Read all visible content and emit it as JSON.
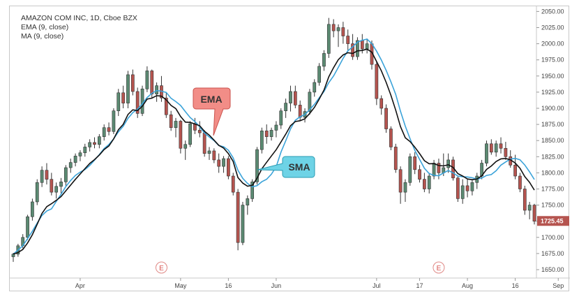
{
  "chart_data": {
    "type": "candlestick",
    "title": "AMAZON COM INC, 1D, Cboe BZX",
    "indicators": [
      "EMA (9, close)",
      "MA (9, close)"
    ],
    "y_ticks": [
      2050,
      2025,
      2000,
      1975,
      1950,
      1925,
      1900,
      1875,
      1850,
      1825,
      1800,
      1775,
      1750,
      1725,
      1700,
      1675,
      1650
    ],
    "ylim": [
      1637,
      2058
    ],
    "x_labels": [
      {
        "label": "Apr",
        "i": 14
      },
      {
        "label": "May",
        "i": 35
      },
      {
        "label": "16",
        "i": 45
      },
      {
        "label": "Jun",
        "i": 55
      },
      {
        "label": "Jul",
        "i": 76
      },
      {
        "label": "17",
        "i": 85
      },
      {
        "label": "Aug",
        "i": 95
      },
      {
        "label": "16",
        "i": 105
      },
      {
        "label": "Sep",
        "i": 114
      }
    ],
    "last_price": "1725.45",
    "up_color": "#5b8a72",
    "down_color": "#b5544f",
    "ema_color": "#3ba3d9",
    "ma_color": "#111111",
    "annotations": {
      "ema": "EMA",
      "sma": "SMA",
      "earnings_marker": "E"
    },
    "earnings_i": [
      31,
      89
    ],
    "candles": [
      [
        1670,
        1676,
        1662,
        1674
      ],
      [
        1674,
        1690,
        1670,
        1687
      ],
      [
        1687,
        1705,
        1683,
        1700
      ],
      [
        1700,
        1735,
        1696,
        1732
      ],
      [
        1732,
        1760,
        1726,
        1755
      ],
      [
        1755,
        1790,
        1750,
        1785
      ],
      [
        1785,
        1810,
        1778,
        1804
      ],
      [
        1804,
        1815,
        1782,
        1790
      ],
      [
        1790,
        1800,
        1765,
        1770
      ],
      [
        1770,
        1785,
        1760,
        1779
      ],
      [
        1779,
        1792,
        1768,
        1786
      ],
      [
        1786,
        1812,
        1780,
        1808
      ],
      [
        1808,
        1822,
        1800,
        1816
      ],
      [
        1816,
        1830,
        1810,
        1826
      ],
      [
        1826,
        1835,
        1818,
        1831
      ],
      [
        1831,
        1845,
        1825,
        1840
      ],
      [
        1840,
        1852,
        1833,
        1847
      ],
      [
        1847,
        1855,
        1838,
        1844
      ],
      [
        1844,
        1860,
        1838,
        1856
      ],
      [
        1856,
        1875,
        1850,
        1870
      ],
      [
        1870,
        1878,
        1858,
        1864
      ],
      [
        1864,
        1900,
        1860,
        1896
      ],
      [
        1896,
        1930,
        1888,
        1924
      ],
      [
        1924,
        1935,
        1900,
        1908
      ],
      [
        1908,
        1958,
        1900,
        1952
      ],
      [
        1952,
        1960,
        1920,
        1926
      ],
      [
        1926,
        1932,
        1885,
        1892
      ],
      [
        1892,
        1935,
        1888,
        1930
      ],
      [
        1930,
        1965,
        1925,
        1958
      ],
      [
        1958,
        1960,
        1915,
        1922
      ],
      [
        1922,
        1940,
        1910,
        1935
      ],
      [
        1935,
        1950,
        1910,
        1916
      ],
      [
        1916,
        1924,
        1885,
        1890
      ],
      [
        1890,
        1896,
        1865,
        1870
      ],
      [
        1870,
        1885,
        1855,
        1880
      ],
      [
        1880,
        1882,
        1830,
        1838
      ],
      [
        1838,
        1850,
        1820,
        1844
      ],
      [
        1844,
        1880,
        1840,
        1876
      ],
      [
        1876,
        1885,
        1860,
        1866
      ],
      [
        1866,
        1880,
        1855,
        1862
      ],
      [
        1862,
        1866,
        1825,
        1830
      ],
      [
        1830,
        1840,
        1820,
        1834
      ],
      [
        1834,
        1838,
        1815,
        1820
      ],
      [
        1820,
        1830,
        1800,
        1810
      ],
      [
        1810,
        1826,
        1800,
        1822
      ],
      [
        1822,
        1826,
        1790,
        1795
      ],
      [
        1795,
        1800,
        1765,
        1770
      ],
      [
        1770,
        1775,
        1680,
        1692
      ],
      [
        1692,
        1755,
        1688,
        1750
      ],
      [
        1750,
        1765,
        1735,
        1760
      ],
      [
        1760,
        1790,
        1755,
        1786
      ],
      [
        1786,
        1840,
        1782,
        1836
      ],
      [
        1836,
        1870,
        1830,
        1865
      ],
      [
        1865,
        1875,
        1845,
        1856
      ],
      [
        1856,
        1870,
        1850,
        1866
      ],
      [
        1866,
        1880,
        1855,
        1874
      ],
      [
        1874,
        1900,
        1868,
        1896
      ],
      [
        1896,
        1915,
        1885,
        1908
      ],
      [
        1908,
        1935,
        1895,
        1926
      ],
      [
        1926,
        1935,
        1900,
        1905
      ],
      [
        1905,
        1912,
        1880,
        1886
      ],
      [
        1886,
        1900,
        1878,
        1895
      ],
      [
        1895,
        1930,
        1890,
        1925
      ],
      [
        1925,
        1945,
        1918,
        1940
      ],
      [
        1940,
        1970,
        1935,
        1965
      ],
      [
        1965,
        1990,
        1958,
        1985
      ],
      [
        1985,
        2040,
        1978,
        2030
      ],
      [
        2030,
        2038,
        2010,
        2020
      ],
      [
        2020,
        2030,
        1995,
        2025
      ],
      [
        2025,
        2034,
        2000,
        2012
      ],
      [
        2012,
        2022,
        1990,
        2000
      ],
      [
        2000,
        2015,
        1975,
        1980
      ],
      [
        1980,
        2010,
        1975,
        2005
      ],
      [
        2005,
        2015,
        1985,
        1992
      ],
      [
        1992,
        2008,
        1985,
        2000
      ],
      [
        2000,
        2005,
        1960,
        1968
      ],
      [
        1968,
        1972,
        1905,
        1915
      ],
      [
        1915,
        1920,
        1890,
        1900
      ],
      [
        1900,
        1906,
        1862,
        1868
      ],
      [
        1868,
        1872,
        1835,
        1840
      ],
      [
        1840,
        1845,
        1800,
        1805
      ],
      [
        1805,
        1810,
        1752,
        1770
      ],
      [
        1770,
        1790,
        1755,
        1785
      ],
      [
        1785,
        1830,
        1780,
        1825
      ],
      [
        1825,
        1832,
        1798,
        1805
      ],
      [
        1805,
        1812,
        1785,
        1790
      ],
      [
        1790,
        1800,
        1770,
        1775
      ],
      [
        1775,
        1800,
        1768,
        1795
      ],
      [
        1795,
        1820,
        1790,
        1815
      ],
      [
        1815,
        1822,
        1790,
        1800
      ],
      [
        1800,
        1830,
        1795,
        1808
      ],
      [
        1808,
        1830,
        1800,
        1820
      ],
      [
        1820,
        1825,
        1788,
        1792
      ],
      [
        1792,
        1795,
        1755,
        1760
      ],
      [
        1760,
        1790,
        1752,
        1780
      ],
      [
        1780,
        1790,
        1762,
        1772
      ],
      [
        1772,
        1790,
        1765,
        1785
      ],
      [
        1785,
        1800,
        1775,
        1795
      ],
      [
        1795,
        1820,
        1790,
        1815
      ],
      [
        1815,
        1850,
        1810,
        1845
      ],
      [
        1845,
        1852,
        1828,
        1832
      ],
      [
        1832,
        1850,
        1825,
        1845
      ],
      [
        1845,
        1855,
        1830,
        1838
      ],
      [
        1838,
        1848,
        1820,
        1825
      ],
      [
        1825,
        1835,
        1808,
        1812
      ],
      [
        1812,
        1828,
        1790,
        1795
      ],
      [
        1795,
        1800,
        1770,
        1775
      ],
      [
        1775,
        1780,
        1735,
        1742
      ],
      [
        1742,
        1755,
        1728,
        1750
      ],
      [
        1750,
        1752,
        1720,
        1725
      ]
    ]
  },
  "legend": {
    "title": "AMAZON COM INC, 1D, Cboe BZX",
    "line1": "EMA (9, close)",
    "line2": "MA (9, close)"
  }
}
